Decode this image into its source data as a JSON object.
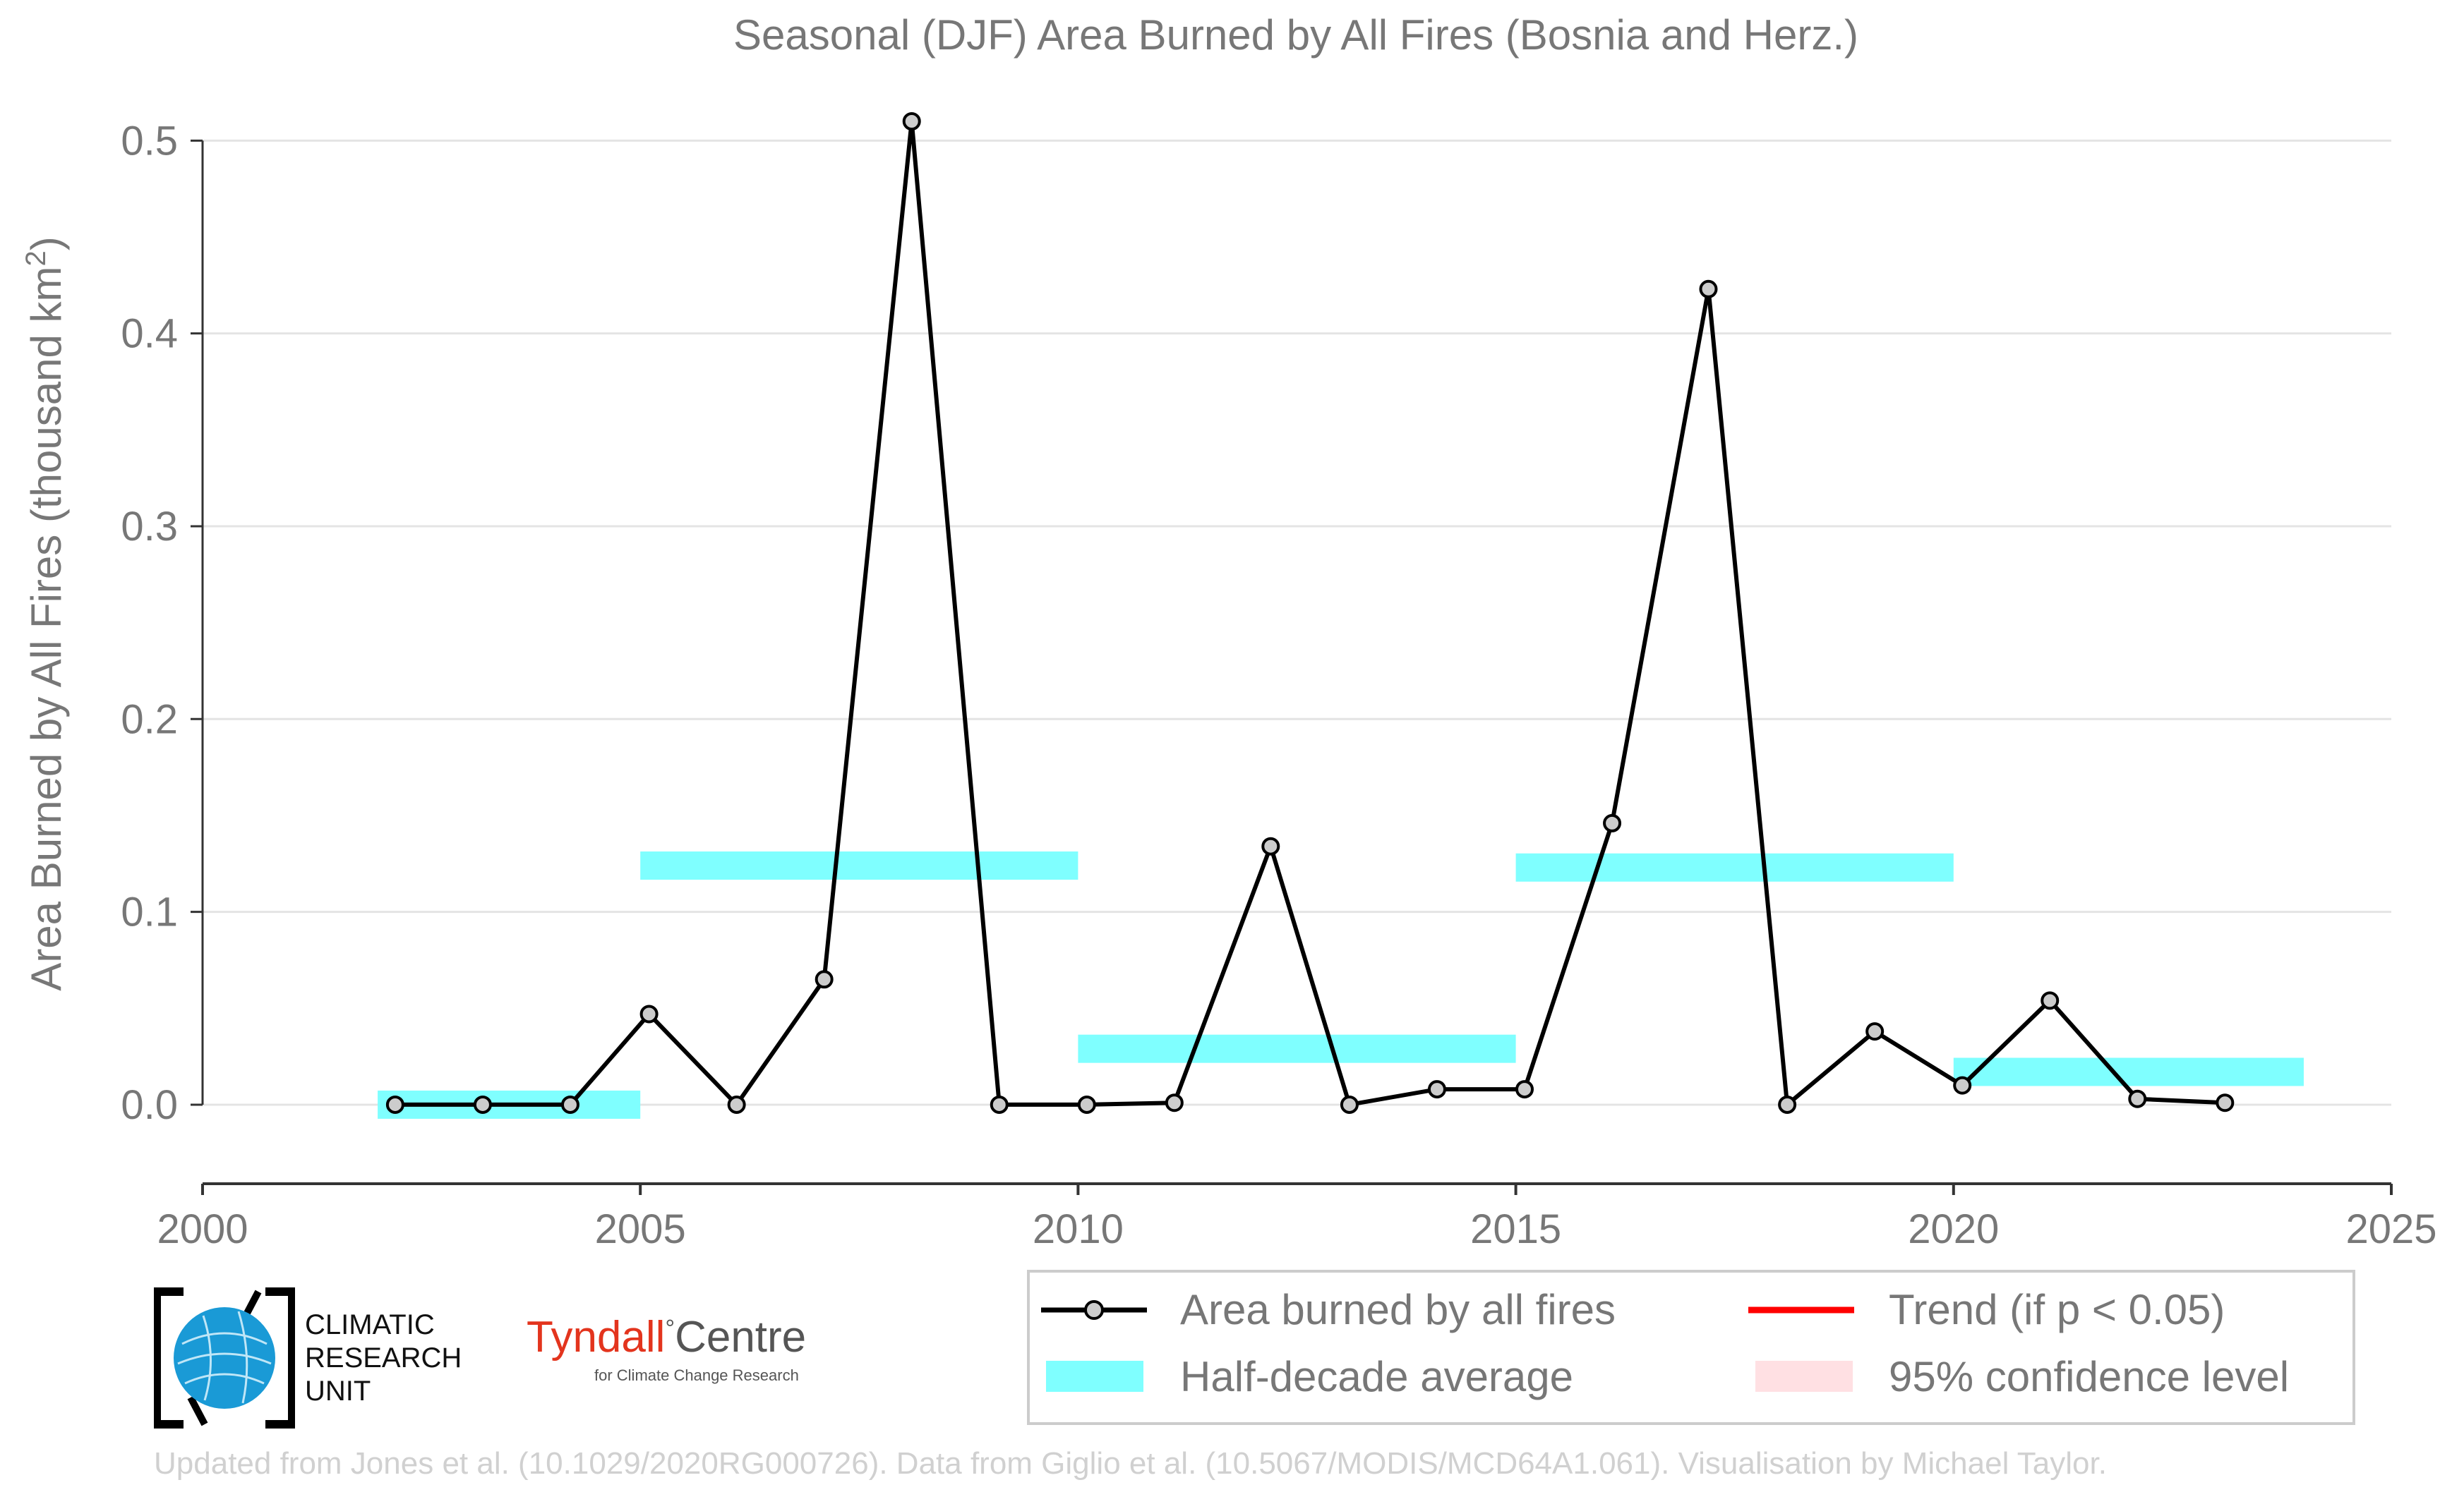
{
  "chart_data": {
    "type": "line",
    "title": "Seasonal (DJF) Area Burned by All Fires (Bosnia and Herz.)",
    "xlabel": "",
    "ylabel": "Area Burned by All Fires (thousand km",
    "ylabel_sup": "2",
    "ylabel_end": ")",
    "xlim": [
      2000,
      2025
    ],
    "ylim": [
      -0.041,
      0.51
    ],
    "xticks": [
      2000,
      2005,
      2010,
      2015,
      2020,
      2025
    ],
    "yticks": [
      0.0,
      0.1,
      0.2,
      0.3,
      0.4,
      0.5
    ],
    "ytick_labels": [
      "0.0",
      "0.1",
      "0.2",
      "0.3",
      "0.4",
      "0.5"
    ],
    "grid": "horizontal",
    "series": [
      {
        "name": "Area burned by all fires",
        "color": "#000000",
        "marker_fill": "#cccccc",
        "x": [
          2002.2,
          2003.2,
          2004.2,
          2005.1,
          2006.1,
          2007.1,
          2008.1,
          2009.1,
          2010.1,
          2011.1,
          2012.2,
          2013.1,
          2014.1,
          2015.1,
          2016.1,
          2017.2,
          2018.1,
          2019.1,
          2020.1,
          2021.1,
          2022.1,
          2023.1
        ],
        "values": [
          0.0,
          0.0,
          0.0,
          0.047,
          0.0,
          0.065,
          0.51,
          0.0,
          0.0,
          0.001,
          0.134,
          0.0,
          0.008,
          0.008,
          0.146,
          0.423,
          0.0,
          0.038,
          0.01,
          0.054,
          0.003,
          0.001
        ]
      }
    ],
    "half_decade_average": {
      "name": "Half-decade average",
      "color": "#7fffff",
      "bars": [
        {
          "x0": 2002,
          "x1": 2005,
          "value": 0.0
        },
        {
          "x0": 2005,
          "x1": 2010,
          "value": 0.124
        },
        {
          "x0": 2010,
          "x1": 2015,
          "value": 0.029
        },
        {
          "x0": 2015,
          "x1": 2020,
          "value": 0.123
        },
        {
          "x0": 2020,
          "x1": 2024,
          "value": 0.017
        }
      ]
    },
    "legend": {
      "position": "bottom-right",
      "items": [
        {
          "label": "Area burned by all fires",
          "kind": "line-marker",
          "color": "#000000"
        },
        {
          "label": "Trend (if p < 0.05)",
          "kind": "line",
          "color": "#ff0000"
        },
        {
          "label": "Half-decade average",
          "kind": "band",
          "color": "#7fffff"
        },
        {
          "label": "95% confidence level",
          "kind": "band",
          "color": "#ffe0e3"
        }
      ]
    }
  },
  "logos": {
    "cru_lines": [
      "CLIMATIC",
      "RESEARCH",
      "UNIT"
    ],
    "tyndall_name_part1": "Tyndall",
    "tyndall_degree": "°",
    "tyndall_name_part2": "Centre",
    "tyndall_sub": "for Climate Change Research"
  },
  "footer": "Updated from Jones et al. (10.1029/2020RG000726). Data from Giglio et al. (10.5067/MODIS/MCD64A1.061). Visualisation by Michael Taylor."
}
